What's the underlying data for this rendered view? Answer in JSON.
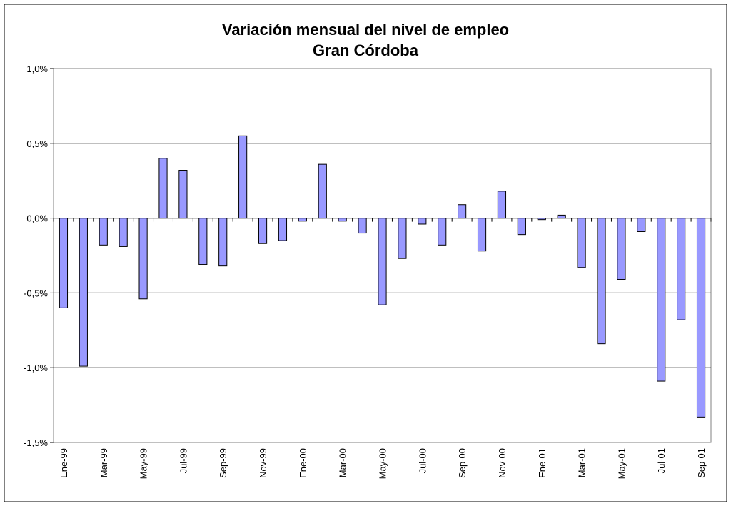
{
  "chart_data": {
    "type": "bar",
    "title": "Variación mensual del nivel de empleo",
    "subtitle": "Gran Córdoba",
    "xlabel": "",
    "ylabel": "",
    "ylim": [
      -1.5,
      1.0
    ],
    "y_ticks": [
      1.0,
      0.5,
      0.0,
      -0.5,
      -1.0,
      -1.5
    ],
    "y_tick_labels": [
      "1,0%",
      "0,5%",
      "0,0%",
      "-0,5%",
      "-1,0%",
      "-1,5%"
    ],
    "y_unit": "%",
    "grid": true,
    "legend": "none",
    "bar_color": "#9999ff",
    "categories": [
      "Ene-99",
      "Feb-99",
      "Mar-99",
      "Abr-99",
      "May-99",
      "Jun-99",
      "Jul-99",
      "Ago-99",
      "Sep-99",
      "Oct-99",
      "Nov-99",
      "Dic-99",
      "Ene-00",
      "Feb-00",
      "Mar-00",
      "Abr-00",
      "May-00",
      "Jun-00",
      "Jul-00",
      "Ago-00",
      "Sep-00",
      "Oct-00",
      "Nov-00",
      "Dic-00",
      "Ene-01",
      "Feb-01",
      "Mar-01",
      "Abr-01",
      "May-01",
      "Jun-01",
      "Jul-01",
      "Ago-01",
      "Sep-01"
    ],
    "x_tick_labels": [
      "Ene-99",
      "",
      "Mar-99",
      "",
      "May-99",
      "",
      "Jul-99",
      "",
      "Sep-99",
      "",
      "Nov-99",
      "",
      "Ene-00",
      "",
      "Mar-00",
      "",
      "May-00",
      "",
      "Jul-00",
      "",
      "Sep-00",
      "",
      "Nov-00",
      "",
      "Ene-01",
      "",
      "Mar-01",
      "",
      "May-01",
      "",
      "Jul-01",
      "",
      "Sep-01"
    ],
    "values": [
      -0.6,
      -0.99,
      -0.18,
      -0.19,
      -0.54,
      0.4,
      0.32,
      -0.31,
      -0.32,
      0.55,
      -0.17,
      -0.15,
      -0.02,
      0.36,
      -0.02,
      -0.1,
      -0.58,
      -0.27,
      -0.04,
      -0.18,
      0.09,
      -0.22,
      0.18,
      -0.11,
      -0.01,
      0.02,
      -0.33,
      -0.84,
      -0.41,
      -0.09,
      -1.09,
      -0.68,
      -1.33
    ]
  }
}
